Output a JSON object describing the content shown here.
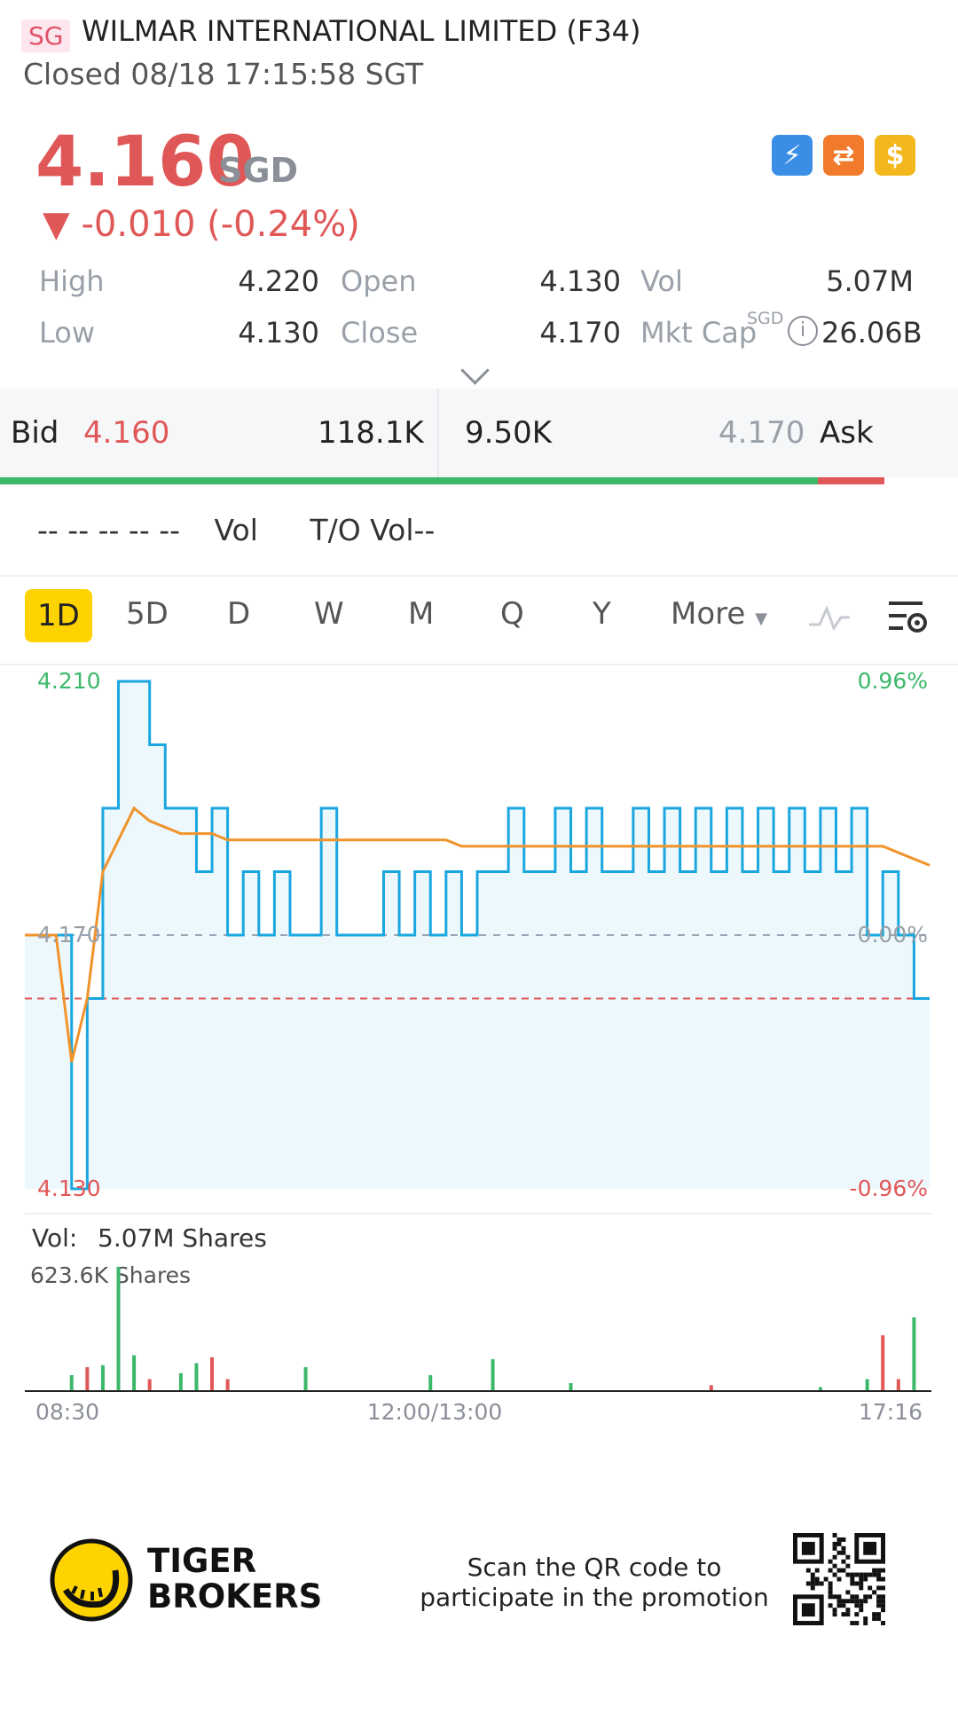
{
  "header": {
    "market_badge": "SG",
    "title": "WILMAR INTERNATIONAL LIMITED (F34)",
    "status": "Closed 08/18 17:15:58 SGT"
  },
  "quote": {
    "price": "4.160",
    "currency": "SGD",
    "change": "▼ -0.010 (-0.24%)",
    "colors": {
      "down": "#e05757",
      "up": "#3cb86a"
    }
  },
  "badges": [
    {
      "name": "lightning-icon",
      "glyph": "⚡"
    },
    {
      "name": "swap-icon",
      "glyph": "⇄"
    },
    {
      "name": "dollar-icon",
      "glyph": "$"
    }
  ],
  "stats": {
    "high_label": "High",
    "high": "4.220",
    "open_label": "Open",
    "open": "4.130",
    "vol_label": "Vol",
    "vol": "5.07M",
    "low_label": "Low",
    "low": "4.130",
    "close_label": "Close",
    "close": "4.170",
    "mktcap_label": "Mkt Cap",
    "mktcap_sup": "SGD",
    "mktcap": "26.06B"
  },
  "orderbook": {
    "bid_label": "Bid",
    "bid_price": "4.160",
    "bid_size": "118.1K",
    "ask_size": "9.50K",
    "ask_price": "4.170",
    "ask_label": "Ask"
  },
  "vol_row": {
    "dashes": "-- -- -- -- --",
    "vol_label": "Vol",
    "to_vol": "T/O Vol--"
  },
  "tabs": [
    "1D",
    "5D",
    "D",
    "W",
    "M",
    "Q",
    "Y",
    "More"
  ],
  "active_tab": "1D",
  "chart_data": {
    "type": "line",
    "y_axis_left_top": "4.210",
    "y_axis_left_mid": "4.170",
    "y_axis_left_bottom": "4.130",
    "y_axis_right_top": "0.96%",
    "y_axis_right_mid": "0.00%",
    "y_axis_right_bottom": "-0.96%",
    "ylim": [
      4.13,
      4.21
    ],
    "prev_close": 4.17,
    "last_price": 4.16,
    "x_ticks": [
      "08:30",
      "12:00/13:00",
      "17:16"
    ],
    "series": [
      {
        "color": "#1aa7e0",
        "values": [
          4.17,
          4.17,
          4.17,
          4.13,
          4.16,
          4.19,
          4.21,
          4.21,
          4.2,
          4.19,
          4.19,
          4.18,
          4.19,
          4.17,
          4.18,
          4.17,
          4.18,
          4.17,
          4.17,
          4.19,
          4.17,
          4.17,
          4.17,
          4.18,
          4.17,
          4.18,
          4.17,
          4.18,
          4.17,
          4.18,
          4.18,
          4.19,
          4.18,
          4.18,
          4.19,
          4.18,
          4.19,
          4.18,
          4.18,
          4.19,
          4.18,
          4.19,
          4.18,
          4.19,
          4.18,
          4.19,
          4.18,
          4.19,
          4.18,
          4.19,
          4.18,
          4.19,
          4.18,
          4.19,
          4.17,
          4.18,
          4.17,
          4.16,
          4.16
        ]
      },
      {
        "color": "#f0932b",
        "values": [
          4.17,
          4.17,
          4.17,
          4.15,
          4.16,
          4.18,
          4.185,
          4.19,
          4.188,
          4.187,
          4.186,
          4.186,
          4.186,
          4.185,
          4.185,
          4.185,
          4.185,
          4.185,
          4.185,
          4.185,
          4.185,
          4.185,
          4.185,
          4.185,
          4.185,
          4.185,
          4.185,
          4.185,
          4.184,
          4.184,
          4.184,
          4.184,
          4.184,
          4.184,
          4.184,
          4.184,
          4.184,
          4.184,
          4.184,
          4.184,
          4.184,
          4.184,
          4.184,
          4.184,
          4.184,
          4.184,
          4.184,
          4.184,
          4.184,
          4.184,
          4.184,
          4.184,
          4.184,
          4.184,
          4.184,
          4.184,
          4.183,
          4.182,
          4.181
        ]
      }
    ],
    "volume": {
      "label": "Vol:",
      "total": "5.07M Shares",
      "max_label": "623.6K Shares",
      "max": 623.6,
      "bars": [
        {
          "i": 3,
          "v": 80,
          "c": "g"
        },
        {
          "i": 4,
          "v": 120,
          "c": "r"
        },
        {
          "i": 5,
          "v": 130,
          "c": "g"
        },
        {
          "i": 6,
          "v": 623.6,
          "c": "g"
        },
        {
          "i": 7,
          "v": 180,
          "c": "g"
        },
        {
          "i": 8,
          "v": 60,
          "c": "r"
        },
        {
          "i": 10,
          "v": 90,
          "c": "g"
        },
        {
          "i": 11,
          "v": 140,
          "c": "g"
        },
        {
          "i": 12,
          "v": 170,
          "c": "r"
        },
        {
          "i": 13,
          "v": 60,
          "c": "r"
        },
        {
          "i": 18,
          "v": 120,
          "c": "g"
        },
        {
          "i": 26,
          "v": 80,
          "c": "g"
        },
        {
          "i": 30,
          "v": 160,
          "c": "g"
        },
        {
          "i": 35,
          "v": 40,
          "c": "g"
        },
        {
          "i": 44,
          "v": 30,
          "c": "r"
        },
        {
          "i": 51,
          "v": 20,
          "c": "g"
        },
        {
          "i": 54,
          "v": 60,
          "c": "g"
        },
        {
          "i": 55,
          "v": 280,
          "c": "r"
        },
        {
          "i": 56,
          "v": 60,
          "c": "r"
        },
        {
          "i": 57,
          "v": 370,
          "c": "g"
        }
      ]
    }
  },
  "footer": {
    "brand_line1": "TIGER",
    "brand_line2": "BROKERS",
    "promo_line1": "Scan the QR code to",
    "promo_line2": "participate in the promotion"
  }
}
